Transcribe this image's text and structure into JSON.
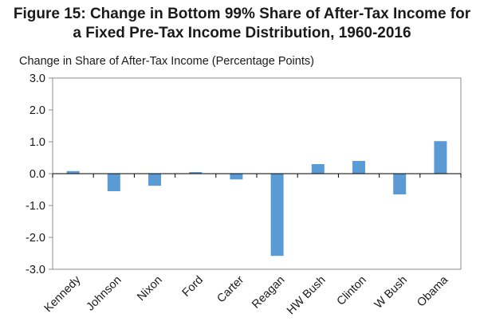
{
  "chart_data": {
    "type": "bar",
    "title_line1": "Figure 15: Change in Bottom 99% Share of After-Tax Income for",
    "title_line2": "a Fixed Pre-Tax Income Distribution, 1960-2016",
    "ylabel": "Change in Share of After-Tax Income (Percentage Points)",
    "xlabel": "",
    "categories": [
      "Kennedy",
      "Johnson",
      "Nixon",
      "Ford",
      "Carter",
      "Reagan",
      "HW Bush",
      "Clinton",
      "W Bush",
      "Obama"
    ],
    "values": [
      0.08,
      -0.55,
      -0.38,
      0.05,
      -0.18,
      -2.58,
      0.3,
      0.4,
      -0.65,
      1.02
    ],
    "ylim": [
      -3.0,
      3.0
    ],
    "yticks": [
      "3.0",
      "2.0",
      "1.0",
      "0.0",
      "-1.0",
      "-2.0",
      "-3.0"
    ],
    "grid": false,
    "legend": "none",
    "bar_color": "#5b9bd5"
  }
}
